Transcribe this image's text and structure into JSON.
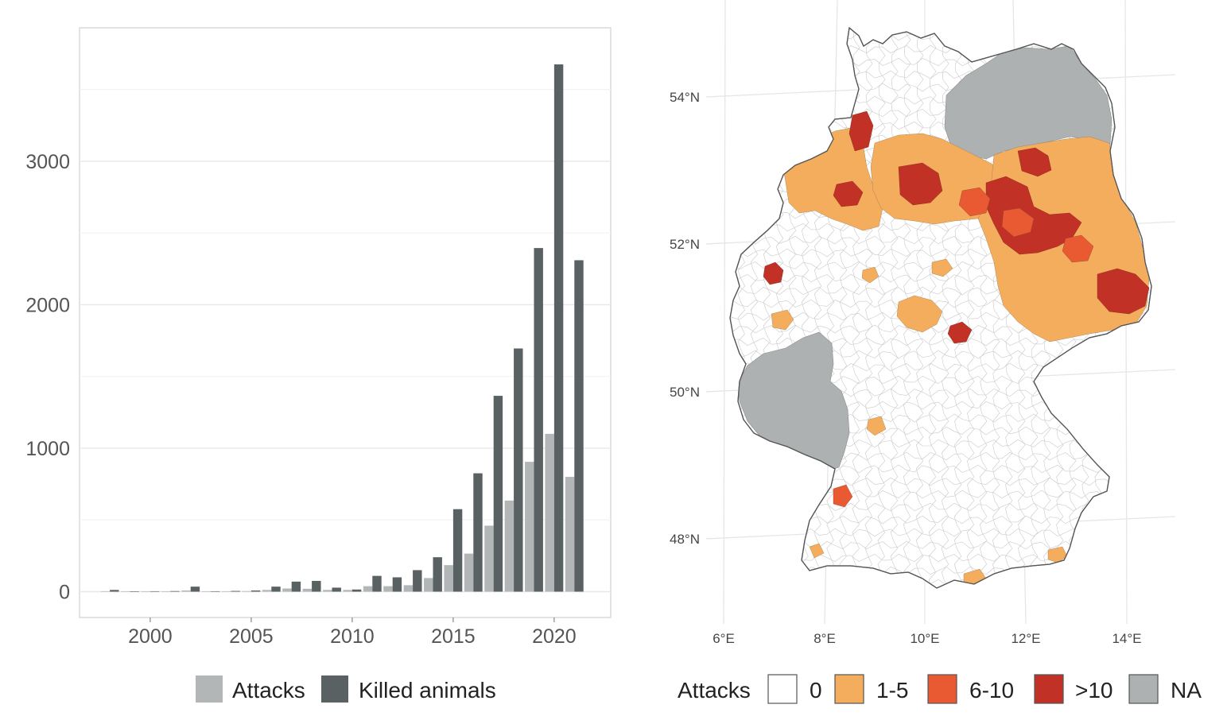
{
  "chart_data": [
    {
      "type": "bar",
      "title": "",
      "xlabel": "",
      "ylabel": "",
      "xlim": [
        1996.5,
        2022.8
      ],
      "ylim": [
        -180,
        3930
      ],
      "x_ticks": [
        2000,
        2005,
        2010,
        2015,
        2020
      ],
      "x_tick_labels": [
        "2000",
        "2005",
        "2010",
        "2015",
        "2020"
      ],
      "y_ticks": [
        0,
        1000,
        2000,
        3000
      ],
      "y_tick_labels": [
        "0",
        "1000",
        "2000",
        "3000"
      ],
      "grid": true,
      "legend": "bottom",
      "x": [
        1998,
        1999,
        2000,
        2001,
        2002,
        2003,
        2004,
        2005,
        2006,
        2007,
        2008,
        2009,
        2010,
        2011,
        2012,
        2013,
        2014,
        2015,
        2016,
        2017,
        2018,
        2019,
        2020,
        2021
      ],
      "series": [
        {
          "name": "Attacks",
          "color": "#b2b6b6",
          "values": [
            3,
            1,
            1,
            1,
            8,
            2,
            2,
            4,
            12,
            22,
            20,
            12,
            12,
            38,
            38,
            45,
            95,
            185,
            265,
            460,
            635,
            905,
            1100,
            800
          ]
        },
        {
          "name": "Killed animals",
          "color": "#5a6163",
          "values": [
            12,
            2,
            3,
            4,
            35,
            3,
            5,
            8,
            35,
            70,
            75,
            28,
            15,
            110,
            100,
            150,
            240,
            575,
            825,
            1365,
            1695,
            2395,
            3675,
            2310
          ]
        }
      ]
    },
    {
      "type": "choropleth",
      "title": "",
      "lon_ticks": [
        "6°E",
        "8°E",
        "10°E",
        "12°E",
        "14°E"
      ],
      "lat_ticks": [
        "54°N",
        "52°N",
        "50°N",
        "48°N"
      ],
      "grid": true,
      "legend": "bottom",
      "legend_title": "Attacks",
      "legend_items": [
        {
          "label": "0",
          "color": "#ffffff"
        },
        {
          "label": "1-5",
          "color": "#f4ad5d"
        },
        {
          "label": "6-10",
          "color": "#e95a33"
        },
        {
          "label": ">10",
          "color": "#c23126"
        },
        {
          "label": "NA",
          "color": "#adb1b1"
        }
      ]
    }
  ]
}
